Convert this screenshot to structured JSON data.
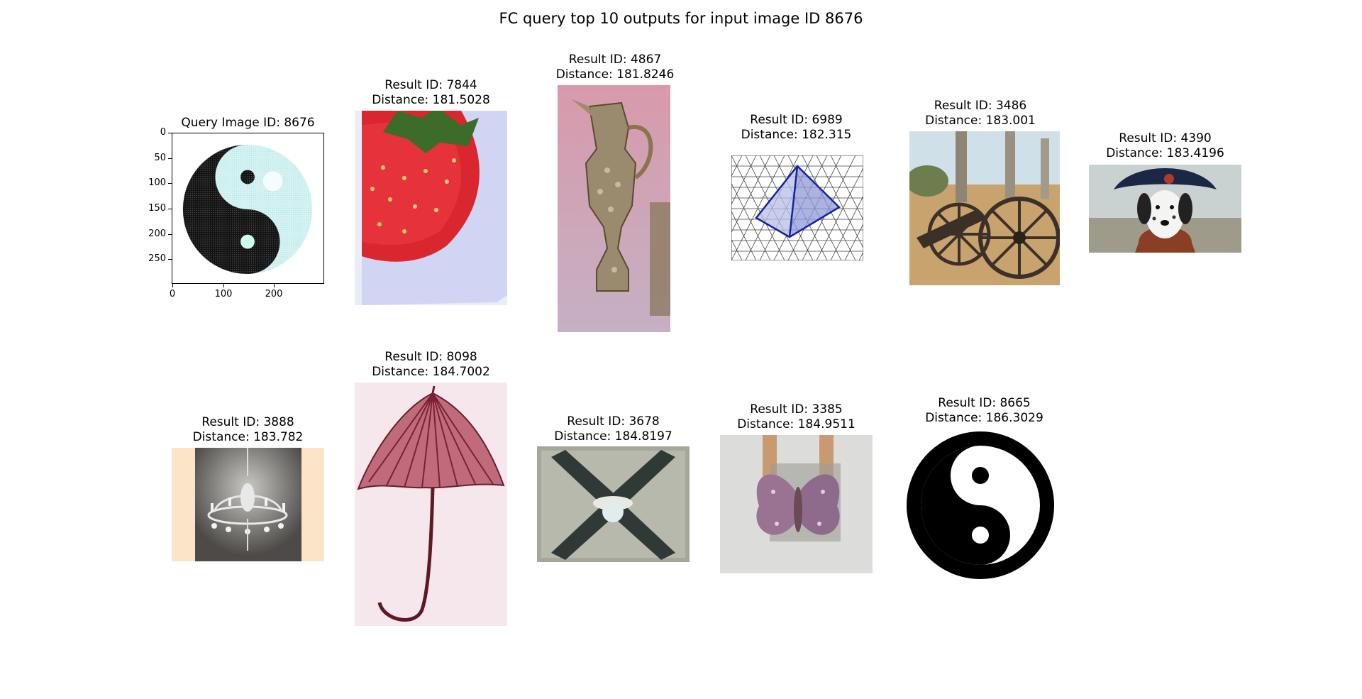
{
  "figure": {
    "title": "FC query top 10 outputs for input image ID 8676"
  },
  "query": {
    "title": "Query Image ID: 8676",
    "y_ticks": [
      "0",
      "50",
      "100",
      "150",
      "200",
      "250"
    ],
    "x_ticks": [
      "0",
      "100",
      "200"
    ]
  },
  "results": [
    {
      "line1": "Result ID: 7844",
      "line2": "Distance: 181.5028",
      "subject": "strawberry"
    },
    {
      "line1": "Result ID: 4867",
      "line2": "Distance: 181.8246",
      "subject": "ornate-ewer"
    },
    {
      "line1": "Result ID: 6989",
      "line2": "Distance: 182.315",
      "subject": "pyramid-grid"
    },
    {
      "line1": "Result ID: 3486",
      "line2": "Distance: 183.001",
      "subject": "cannon"
    },
    {
      "line1": "Result ID: 4390",
      "line2": "Distance: 183.4196",
      "subject": "dalmatian"
    },
    {
      "line1": "Result ID: 3888",
      "line2": "Distance: 183.782",
      "subject": "chandelier"
    },
    {
      "line1": "Result ID: 8098",
      "line2": "Distance: 184.7002",
      "subject": "umbrella"
    },
    {
      "line1": "Result ID: 3678",
      "line2": "Distance: 184.8197",
      "subject": "ceiling-fan"
    },
    {
      "line1": "Result ID: 3385",
      "line2": "Distance: 184.9511",
      "subject": "butterfly"
    },
    {
      "line1": "Result ID: 8665",
      "line2": "Distance: 186.3029",
      "subject": "yin-yang"
    }
  ]
}
